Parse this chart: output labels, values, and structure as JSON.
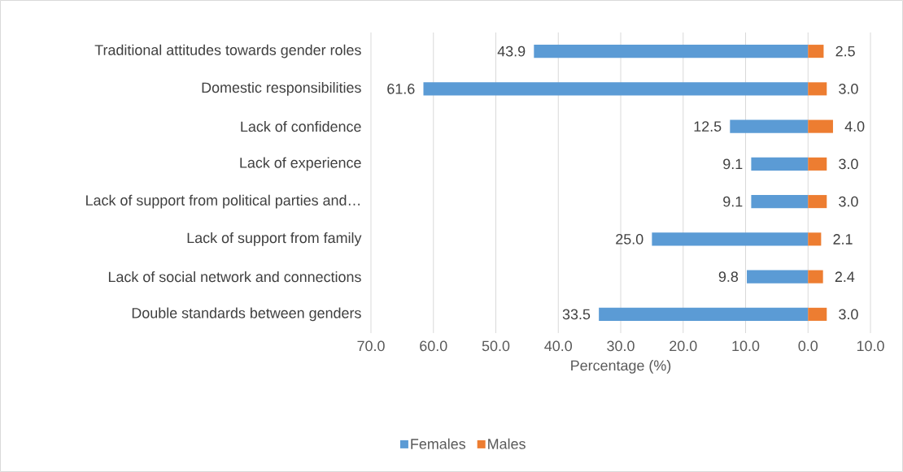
{
  "chart_data": {
    "type": "bar",
    "orientation": "horizontal",
    "categories": [
      "Traditional attitudes towards gender roles",
      "Domestic responsibilities",
      "Lack of confidence",
      "Lack of experience",
      "Lack of support from political parties and…",
      "Lack of support from family",
      "Lack of social network and connections",
      "Double standards between genders"
    ],
    "series": [
      {
        "name": "Females",
        "color": "#5b9bd5",
        "values": [
          43.9,
          61.6,
          12.5,
          9.1,
          9.1,
          25.0,
          9.8,
          33.5
        ],
        "base": [
          -43.9,
          -61.6,
          -12.5,
          -9.1,
          -9.1,
          -25.0,
          -9.8,
          -33.5
        ],
        "value_labels": [
          "43.9",
          "61.6",
          "12.5",
          "9.1",
          "9.1",
          "25.0",
          "9.8",
          "33.5"
        ]
      },
      {
        "name": "Males",
        "color": "#ed7d31",
        "values": [
          2.5,
          3.0,
          4.0,
          3.0,
          3.0,
          2.1,
          2.4,
          3.0
        ],
        "base": [
          0,
          0,
          0,
          0,
          0,
          0,
          0,
          0
        ],
        "value_labels": [
          "2.5",
          "3.0",
          "4.0",
          "3.0",
          "3.0",
          "2.1",
          "2.4",
          "3.0"
        ]
      }
    ],
    "xlim": [
      -70,
      10
    ],
    "xticks": [
      {
        "value": -70,
        "label": "70.0"
      },
      {
        "value": -60,
        "label": "60.0"
      },
      {
        "value": -50,
        "label": "50.0"
      },
      {
        "value": -40,
        "label": "40.0"
      },
      {
        "value": -30,
        "label": "30.0"
      },
      {
        "value": -20,
        "label": "20.0"
      },
      {
        "value": -10,
        "label": "10.0"
      },
      {
        "value": 0,
        "label": "0.0"
      },
      {
        "value": 10,
        "label": "10.0"
      }
    ],
    "xlabel": "Percentage (%)",
    "grid": "x",
    "legend": "bottom"
  }
}
